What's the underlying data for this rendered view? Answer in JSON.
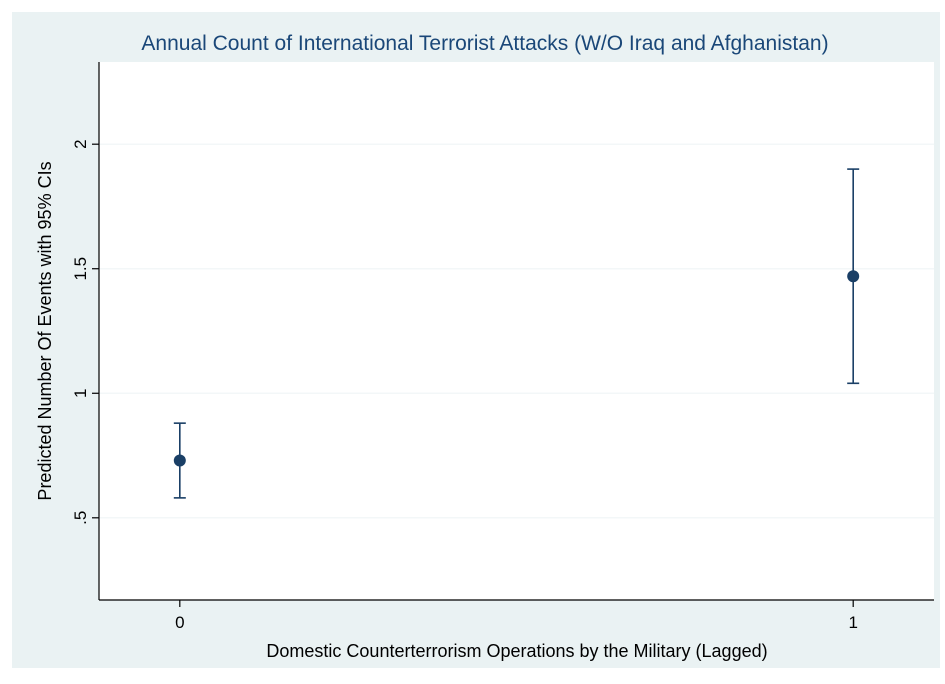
{
  "chart_data": {
    "type": "scatter",
    "title": "Annual Count of International Terrorist Attacks (W/O Iraq and Afghanistan)",
    "xlabel": "Domestic Counterterrorism Operations by the Military (Lagged)",
    "ylabel": "Predicted Number Of Events with 95% CIs",
    "x_ticks": [
      {
        "value": 0,
        "label": "0"
      },
      {
        "value": 1,
        "label": "1"
      }
    ],
    "y_ticks": [
      {
        "value": 0.5,
        "label": ".5"
      },
      {
        "value": 1,
        "label": "1"
      },
      {
        "value": 1.5,
        "label": "1.5"
      },
      {
        "value": 2,
        "label": "2"
      }
    ],
    "xlim": [
      -0.12,
      1.12
    ],
    "ylim": [
      0.17,
      2.33
    ],
    "grid": true,
    "points": [
      {
        "x": 0,
        "y": 0.73,
        "ci_low": 0.58,
        "ci_high": 0.88
      },
      {
        "x": 1,
        "y": 1.47,
        "ci_low": 1.04,
        "ci_high": 1.9
      }
    ],
    "colors": {
      "marker": "#1a3f66",
      "title": "#1a4778",
      "background": "#eaf2f3",
      "grid": "#f3f7f8"
    }
  }
}
